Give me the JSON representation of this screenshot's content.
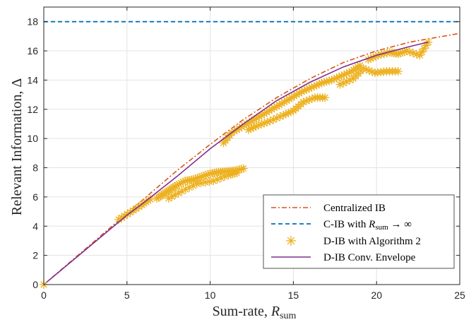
{
  "chart_data": {
    "type": "line",
    "xlabel_main": "Sum-rate, ",
    "xlabel_sym": "R",
    "xlabel_sub": "sum",
    "ylabel_main": "Relevant Information, ",
    "ylabel_sym": "Δ",
    "xlim": [
      0,
      25
    ],
    "ylim": [
      0,
      19
    ],
    "xticks": [
      0,
      5,
      10,
      15,
      20,
      25
    ],
    "yticks": [
      0,
      2,
      4,
      6,
      8,
      10,
      12,
      14,
      16,
      18
    ],
    "grid": true,
    "legend_position": "bottom-right",
    "colors": {
      "centralized": "#D95319",
      "cib_inf": "#0072BD",
      "dib_points": "#EDB120",
      "dib_envelope": "#7E2F8E",
      "grid": "#e3e3e3",
      "axis": "#262626"
    },
    "series": [
      {
        "key": "centralized",
        "name": "Centralized IB",
        "style": "dash-dot",
        "x": [
          0,
          2,
          4,
          6,
          8,
          10,
          12,
          14,
          16,
          18,
          20,
          22,
          24,
          25
        ],
        "y": [
          0,
          1.95,
          3.9,
          5.85,
          7.8,
          9.6,
          11.3,
          12.8,
          14.1,
          15.2,
          16.0,
          16.6,
          17.0,
          17.2
        ]
      },
      {
        "key": "cib_inf",
        "name_prefix": "C-IB with ",
        "name_sym": "R",
        "name_sub": "sum",
        "name_suffix": " → ∞",
        "style": "dashed",
        "x": [
          0,
          25
        ],
        "y": [
          18,
          18
        ]
      },
      {
        "key": "dib_points",
        "name": "D-IB with Algorithm 2",
        "style": "markers",
        "clusters": [
          {
            "x": [
              4.5,
              5.2,
              5.9,
              6.4
            ],
            "y": [
              4.45,
              4.95,
              5.45,
              5.85
            ]
          },
          {
            "x": [
              6.8,
              7.2,
              7.6,
              8.0,
              8.5,
              9.0,
              9.5,
              10.0,
              10.5,
              11.0,
              11.5,
              12.0
            ],
            "y": [
              5.9,
              6.2,
              6.5,
              6.8,
              7.1,
              7.2,
              7.4,
              7.6,
              7.7,
              7.75,
              7.8,
              7.95
            ]
          },
          {
            "x": [
              7.5,
              8.3,
              9.2,
              10.2,
              11.1,
              11.6
            ],
            "y": [
              5.9,
              6.4,
              6.9,
              7.1,
              7.5,
              7.65
            ]
          },
          {
            "x": [
              10.8,
              11.3,
              11.9,
              12.5,
              13.1,
              13.7,
              14.3,
              14.9,
              15.5,
              16.1,
              16.7,
              17.3,
              17.9,
              18.5,
              19.0
            ],
            "y": [
              9.7,
              10.4,
              10.8,
              11.2,
              11.6,
              12.0,
              12.4,
              12.8,
              13.2,
              13.5,
              13.8,
              14.0,
              14.3,
              14.6,
              15.0
            ]
          },
          {
            "x": [
              12.3,
              12.9,
              13.6,
              14.4,
              15.0,
              15.6,
              16.3,
              16.9
            ],
            "y": [
              10.6,
              10.9,
              11.2,
              11.6,
              11.9,
              12.5,
              12.8,
              12.8
            ]
          },
          {
            "x": [
              17.8,
              18.6,
              19.2,
              19.9,
              20.6,
              21.3
            ],
            "y": [
              13.7,
              14.1,
              14.8,
              14.5,
              14.6,
              14.6
            ]
          },
          {
            "x": [
              19.5,
              20.1,
              20.8,
              21.3,
              21.8,
              22.6,
              23.1
            ],
            "y": [
              15.4,
              15.7,
              15.9,
              15.8,
              16.0,
              15.7,
              16.6
            ]
          }
        ]
      },
      {
        "key": "dib_envelope",
        "name": "D-IB Conv. Envelope",
        "style": "solid",
        "x": [
          0,
          2,
          4,
          5,
          6,
          8,
          10,
          12,
          14,
          16,
          18,
          20,
          22,
          23.1
        ],
        "y": [
          0,
          1.9,
          3.8,
          4.75,
          5.6,
          7.4,
          9.3,
          11.0,
          12.6,
          13.85,
          14.9,
          15.7,
          16.3,
          16.6
        ]
      }
    ],
    "origin_marker": {
      "x": 0,
      "y": 0
    }
  }
}
